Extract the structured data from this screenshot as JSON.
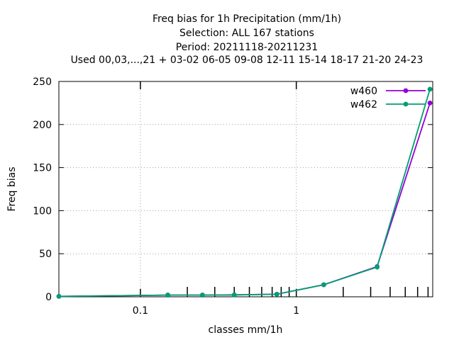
{
  "chart_data": {
    "type": "line",
    "title_lines": [
      "Freq bias  for 1h Precipitation (mm/1h)",
      "Selection: ALL    167 stations",
      "Period: 20211118-20211231",
      "Used  00,03,...,21  + 03-02 06-05 09-08 12-11 15-14 18-17 21-20 24-23"
    ],
    "xlabel": "classes mm/1h",
    "ylabel": "Freq bias",
    "xscale": "log",
    "xlim": [
      0.03,
      7.5
    ],
    "ylim": [
      0,
      250
    ],
    "yticks": [
      0,
      50,
      100,
      150,
      200,
      250
    ],
    "xticks": [
      {
        "value": 0.1,
        "label": "0.1"
      },
      {
        "value": 1,
        "label": "1"
      }
    ],
    "minor_xticks": [
      0.2,
      0.3,
      0.4,
      0.5,
      0.6,
      0.7,
      0.8,
      0.9,
      2,
      3,
      4,
      5,
      6,
      7
    ],
    "grid": true,
    "legend_position": "top-right",
    "series": [
      {
        "name": "w460",
        "color": "#9400d3",
        "x": [
          0.03,
          0.15,
          0.25,
          0.4,
          0.75,
          1.5,
          3.3,
          7.2
        ],
        "y": [
          0.5,
          2.0,
          2.0,
          2.2,
          3.0,
          14.0,
          35.0,
          225.0
        ]
      },
      {
        "name": "w462",
        "color": "#009e73",
        "x": [
          0.03,
          0.15,
          0.25,
          0.4,
          0.75,
          1.5,
          3.3,
          7.2
        ],
        "y": [
          0.5,
          2.0,
          2.0,
          2.2,
          3.0,
          14.0,
          34.5,
          241.0
        ]
      }
    ]
  }
}
